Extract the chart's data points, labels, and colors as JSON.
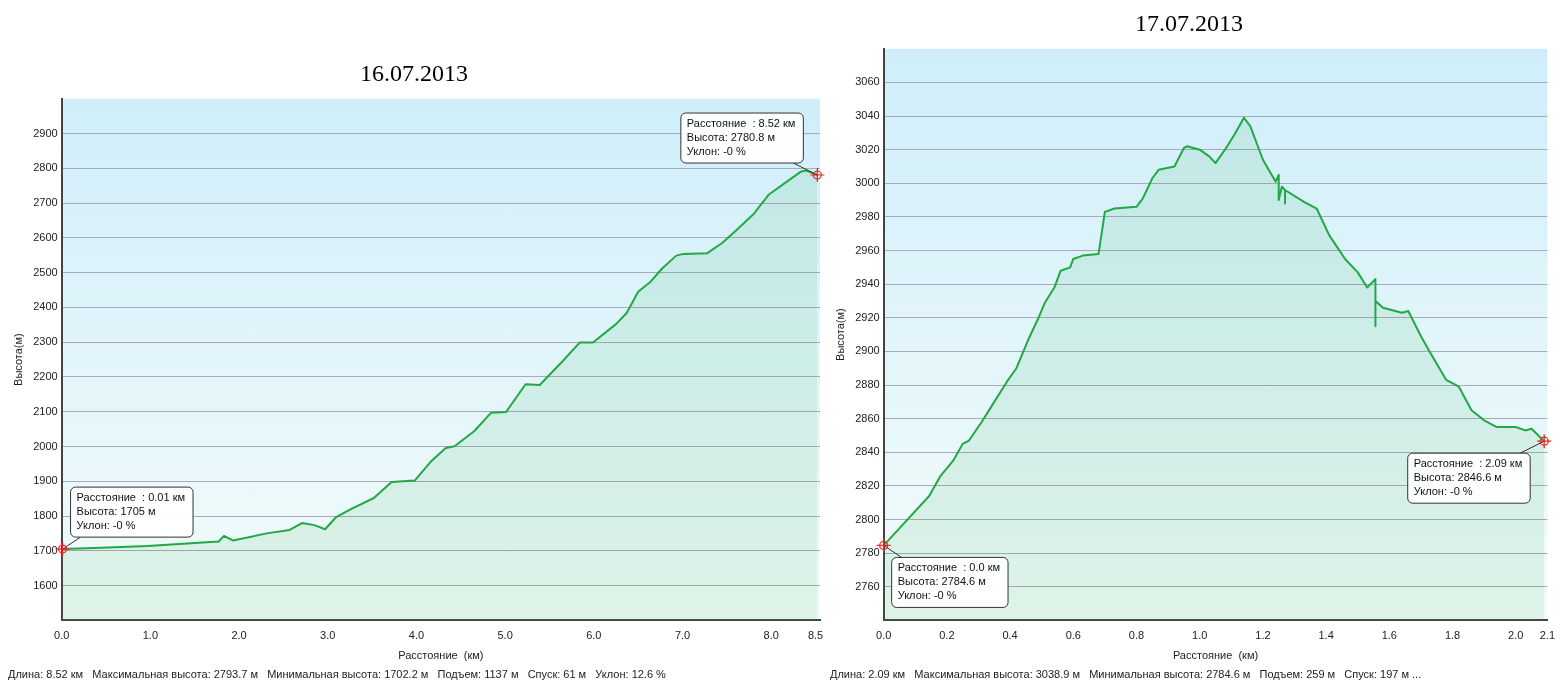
{
  "chart_data": [
    {
      "type": "area",
      "title": "16.07.2013",
      "xlabel": "Расстояние  (км)",
      "ylabel": "Высота(м)",
      "grid": "y",
      "marker": "none",
      "legend": false,
      "xlim": [
        0,
        8.55
      ],
      "xticks": [
        {
          "value": 0,
          "label": "0.0"
        },
        {
          "value": 1,
          "label": "1.0"
        },
        {
          "value": 2,
          "label": "2.0"
        },
        {
          "value": 3,
          "label": "3.0"
        },
        {
          "value": 4,
          "label": "4.0"
        },
        {
          "value": 5,
          "label": "5.0"
        },
        {
          "value": 6,
          "label": "6.0"
        },
        {
          "value": 7,
          "label": "7.0"
        },
        {
          "value": 8,
          "label": "8.0"
        },
        {
          "value": 8.5,
          "label": "8.5"
        }
      ],
      "ylim": [
        1500,
        3000
      ],
      "yticks": [
        1600,
        1700,
        1800,
        1900,
        2000,
        2100,
        2200,
        2300,
        2400,
        2500,
        2600,
        2700,
        2800,
        2900
      ],
      "series": [
        {
          "color": "#22a844",
          "x": [
            0,
            0.37,
            0.97,
            1.77,
            1.83,
            1.93,
            2.33,
            2.57,
            2.71,
            2.85,
            2.97,
            3.09,
            3.26,
            3.52,
            3.72,
            3.98,
            4.16,
            4.33,
            4.43,
            4.65,
            4.84,
            5.01,
            5.23,
            5.39,
            5.65,
            5.84,
            5.99,
            6.25,
            6.37,
            6.5,
            6.64,
            6.77,
            6.93,
            7.01,
            7.28,
            7.45,
            7.61,
            7.81,
            7.97,
            8.33,
            8.39,
            8.52
          ],
          "values": [
            1705,
            1708,
            1714,
            1727,
            1743,
            1730,
            1751,
            1760,
            1780,
            1774,
            1762,
            1796,
            1820,
            1852,
            1898,
            1902,
            1956,
            1996,
            2001,
            2044,
            2097,
            2099,
            2179,
            2177,
            2246,
            2299,
            2299,
            2352,
            2384,
            2445,
            2474,
            2512,
            2549,
            2554,
            2556,
            2586,
            2623,
            2671,
            2724,
            2790,
            2794,
            2780.8
          ]
        }
      ],
      "annotations": [
        {
          "text": "Расстояние  : 0.01 км\nВысота: 1705 м\nУклон: -0 %",
          "x": 0.01,
          "y": 1705
        },
        {
          "text": "Расстояние  : 8.52 км\nВысота: 2780.8 м\nУклон: -0 %",
          "x": 8.52,
          "y": 2780.8
        },
        "Длина: 8.52 км   Максимальная высота: 2793.7 м   Минимальная высота: 1702.2 м   Подъем: 1137 м   Спуск: 61 м   Уклон: 12.6 %"
      ]
    },
    {
      "type": "area",
      "title": "17.07.2013",
      "xlabel": "Расстояние  (км)",
      "ylabel": "Высота(м)",
      "grid": "y",
      "marker": "none",
      "legend": false,
      "xlim": [
        0,
        2.1
      ],
      "xticks": [
        {
          "value": 0,
          "label": "0.0"
        },
        {
          "value": 0.2,
          "label": "0.2"
        },
        {
          "value": 0.4,
          "label": "0.4"
        },
        {
          "value": 0.6,
          "label": "0.6"
        },
        {
          "value": 0.8,
          "label": "0.8"
        },
        {
          "value": 1,
          "label": "1.0"
        },
        {
          "value": 1.2,
          "label": "1.2"
        },
        {
          "value": 1.4,
          "label": "1.4"
        },
        {
          "value": 1.6,
          "label": "1.6"
        },
        {
          "value": 1.8,
          "label": "1.8"
        },
        {
          "value": 2,
          "label": "2.0"
        },
        {
          "value": 2.1,
          "label": "2.1"
        }
      ],
      "ylim": [
        2740,
        3080
      ],
      "yticks": [
        2760,
        2780,
        2800,
        2820,
        2840,
        2860,
        2880,
        2900,
        2920,
        2940,
        2960,
        2980,
        3000,
        3020,
        3040,
        3060
      ],
      "series": [
        {
          "color": "#22a844",
          "x": [
            0,
            0.144,
            0.18,
            0.22,
            0.25,
            0.27,
            0.31,
            0.34,
            0.39,
            0.42,
            0.46,
            0.49,
            0.51,
            0.54,
            0.56,
            0.59,
            0.6,
            0.63,
            0.68,
            0.7,
            0.73,
            0.8,
            0.82,
            0.85,
            0.87,
            0.92,
            0.95,
            0.96,
            1,
            1.03,
            1.05,
            1.08,
            1.11,
            1.14,
            1.16,
            1.2,
            1.24,
            1.25,
            1.25,
            1.26,
            1.27,
            1.27,
            1.27,
            1.33,
            1.37,
            1.41,
            1.46,
            1.5,
            1.53,
            1.556,
            1.556,
            1.556,
            1.58,
            1.64,
            1.66,
            1.7,
            1.73,
            1.78,
            1.82,
            1.86,
            1.9,
            1.94,
            2,
            2.03,
            2.05,
            2.09
          ],
          "values": [
            2784.6,
            2814,
            2826,
            2835,
            2845,
            2847,
            2858,
            2867,
            2882,
            2890,
            2908,
            2920,
            2929,
            2938,
            2948,
            2950,
            2955,
            2957,
            2958,
            2983,
            2985,
            2986,
            2991,
            3003,
            3008,
            3010,
            3021,
            3022,
            3020,
            3016,
            3012,
            3020,
            3029,
            3039,
            3034,
            3014,
            3001,
            3005,
            2990,
            2998,
            2996,
            2988,
            2996,
            2989,
            2985,
            2969,
            2955,
            2947,
            2938,
            2943,
            2915,
            2930,
            2926,
            2923,
            2924,
            2909,
            2899,
            2883,
            2879,
            2865,
            2859,
            2855,
            2855,
            2853,
            2854,
            2846.6
          ]
        }
      ],
      "annotations": [
        {
          "text": "Расстояние  : 0.0 км\nВысота: 2784.6 м\nУклон: -0 %",
          "x": 0,
          "y": 2784.6
        },
        {
          "text": "Расстояние  : 2.09 км\nВысота: 2846.6 м\nУклон: -0 %",
          "x": 2.09,
          "y": 2846.6
        },
        "Длина: 2.09 км   Максимальная высота: 3038.9 м   Минимальная высота: 2784.6 м   Подъем: 259 м   Спуск: 197 м ..."
      ]
    }
  ]
}
